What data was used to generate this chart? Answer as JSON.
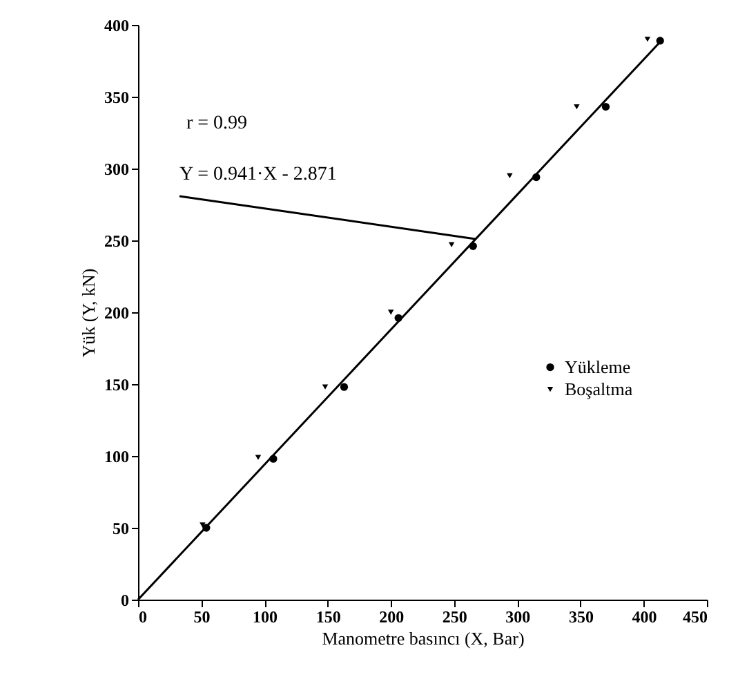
{
  "chart_data": {
    "type": "scatter",
    "xlabel": "Manometre basıncı (X, Bar)",
    "ylabel": "Yük (Y, kN)",
    "xlim": [
      0,
      450
    ],
    "xticks": [
      0,
      50,
      100,
      150,
      200,
      250,
      300,
      350,
      400,
      450
    ],
    "ylim": [
      0,
      400
    ],
    "yticks": [
      0,
      50,
      100,
      150,
      200,
      250,
      300,
      350,
      400
    ],
    "legend": "right",
    "annotations": [
      "r = 0.99",
      {
        "text": "Y = 0.941·X - 2.871",
        "x": 267,
        "y": 251
      }
    ],
    "series": [
      {
        "name": "Yükleme",
        "color": "#000000",
        "marker": "circle",
        "x": [
          54,
          107,
          163,
          206,
          265,
          315,
          370,
          413
        ],
        "values": [
          50,
          98,
          148,
          196,
          246,
          294,
          343,
          389
        ]
      },
      {
        "name": "Boşaltma",
        "color": "#000000",
        "marker": "triangle",
        "x": [
          51,
          95,
          148,
          200,
          248,
          294,
          347,
          403
        ],
        "values": [
          52,
          99,
          148,
          200,
          247,
          295,
          343,
          390
        ]
      },
      {
        "type": "line",
        "color": "#000000",
        "x": [
          0,
          415
        ],
        "values": [
          0,
          390
        ]
      }
    ]
  }
}
